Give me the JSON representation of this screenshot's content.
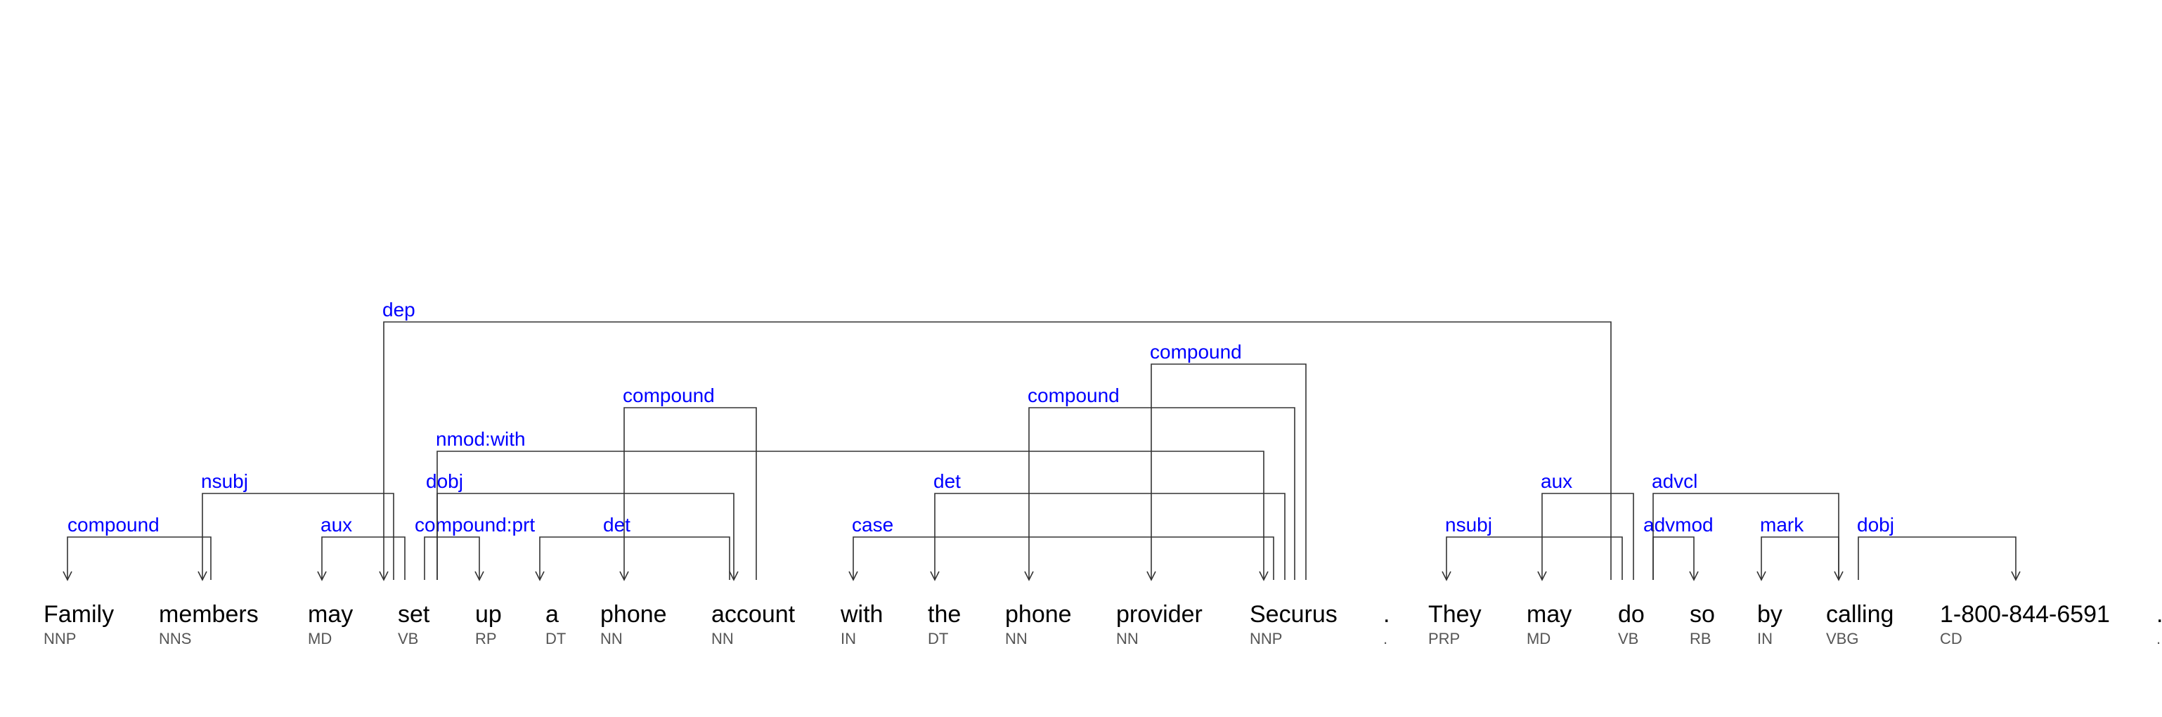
{
  "tokens": [
    {
      "word": "Family",
      "tag": "NNP"
    },
    {
      "word": "members",
      "tag": "NNS"
    },
    {
      "word": "may",
      "tag": "MD"
    },
    {
      "word": "set",
      "tag": "VB"
    },
    {
      "word": "up",
      "tag": "RP"
    },
    {
      "word": "a",
      "tag": "DT"
    },
    {
      "word": "phone",
      "tag": "NN"
    },
    {
      "word": "account",
      "tag": "NN"
    },
    {
      "word": "with",
      "tag": "IN"
    },
    {
      "word": "the",
      "tag": "DT"
    },
    {
      "word": "phone",
      "tag": "NN"
    },
    {
      "word": "provider",
      "tag": "NN"
    },
    {
      "word": "Securus",
      "tag": "NNP"
    },
    {
      "word": ".",
      "tag": "."
    },
    {
      "word": "They",
      "tag": "PRP"
    },
    {
      "word": "may",
      "tag": "MD"
    },
    {
      "word": "do",
      "tag": "VB"
    },
    {
      "word": "so",
      "tag": "RB"
    },
    {
      "word": "by",
      "tag": "IN"
    },
    {
      "word": "calling",
      "tag": "VBG"
    },
    {
      "word": "1-800-844-6591",
      "tag": "CD"
    },
    {
      "word": ".",
      "tag": "."
    }
  ],
  "arcs": [
    {
      "label": "compound",
      "head": 1,
      "dep": 0
    },
    {
      "label": "nsubj",
      "head": 3,
      "dep": 1
    },
    {
      "label": "aux",
      "head": 3,
      "dep": 2
    },
    {
      "label": "compound:prt",
      "head": 3,
      "dep": 4
    },
    {
      "label": "det",
      "head": 7,
      "dep": 5
    },
    {
      "label": "compound",
      "head": 7,
      "dep": 6
    },
    {
      "label": "dobj",
      "head": 3,
      "dep": 7
    },
    {
      "label": "nmod:with",
      "head": 3,
      "dep": 12
    },
    {
      "label": "case",
      "head": 12,
      "dep": 8
    },
    {
      "label": "det",
      "head": 12,
      "dep": 9
    },
    {
      "label": "compound",
      "head": 12,
      "dep": 10
    },
    {
      "label": "compound",
      "head": 12,
      "dep": 11
    },
    {
      "label": "dep",
      "head": 16,
      "dep": 3
    },
    {
      "label": "nsubj",
      "head": 16,
      "dep": 14
    },
    {
      "label": "aux",
      "head": 16,
      "dep": 15
    },
    {
      "label": "advmod",
      "head": 16,
      "dep": 17
    },
    {
      "label": "advcl",
      "head": 16,
      "dep": 19
    },
    {
      "label": "mark",
      "head": 19,
      "dep": 18
    },
    {
      "label": "dobj",
      "head": 19,
      "dep": 20
    }
  ],
  "colors": {
    "token": "#000000",
    "tag": "#555555",
    "arc_label": "#0000ff",
    "arc_line": "#333333"
  }
}
